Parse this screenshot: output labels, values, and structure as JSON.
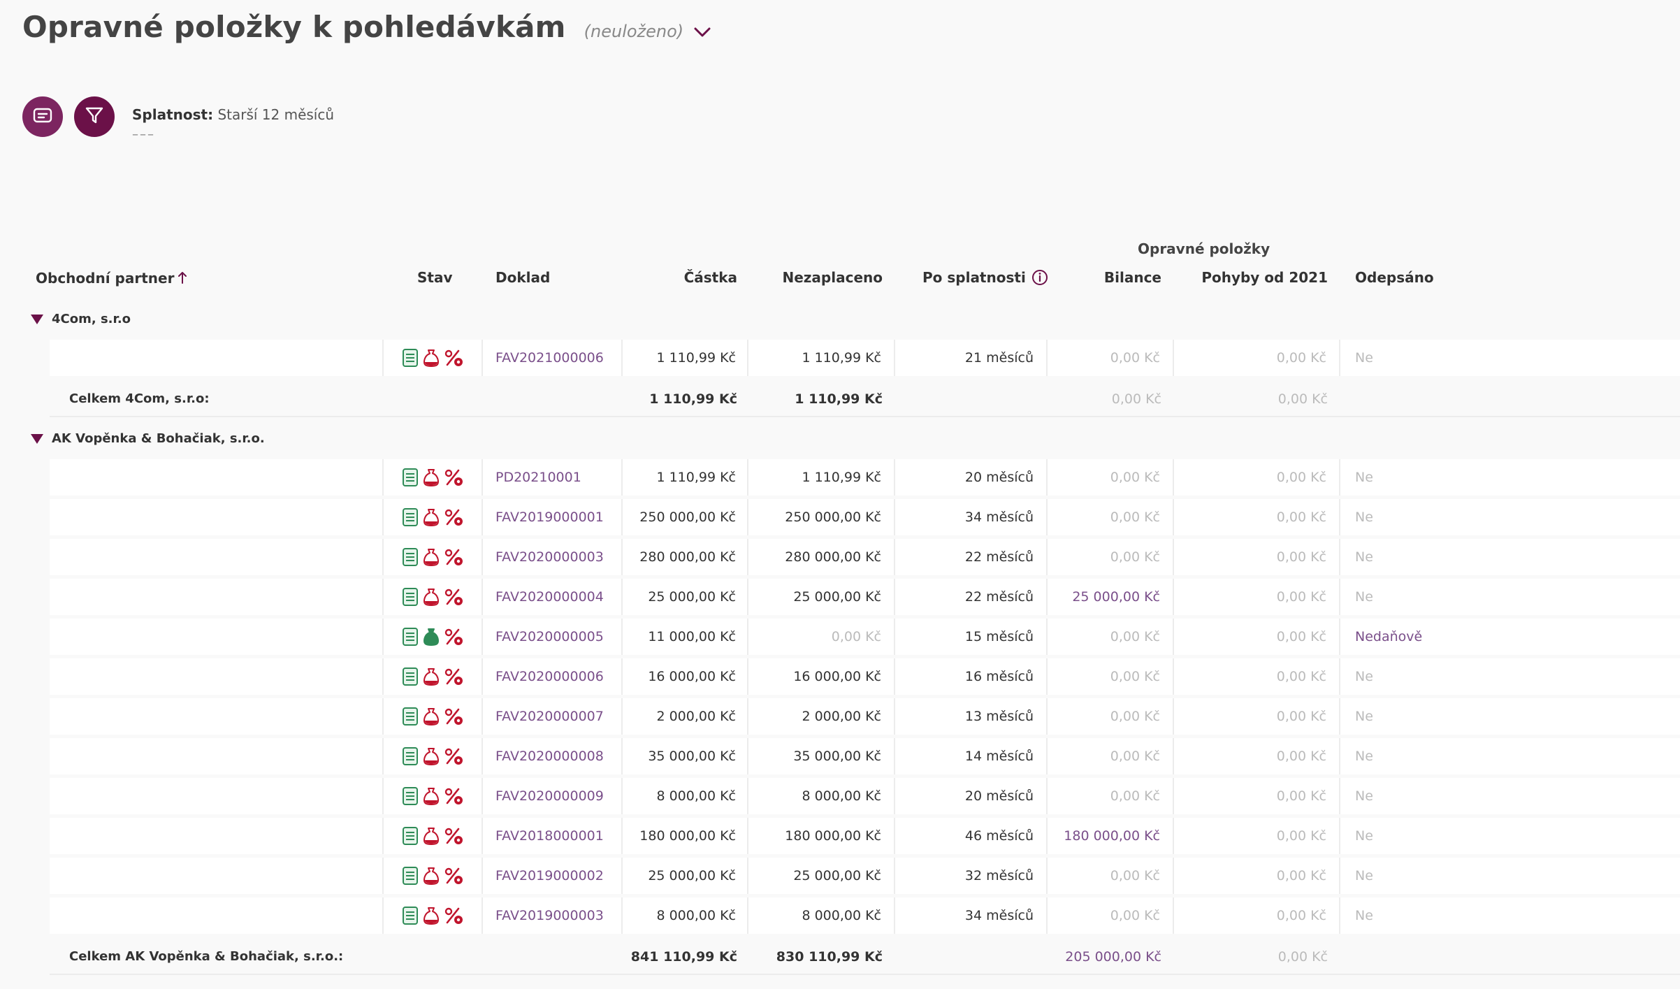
{
  "header": {
    "title": "Opravné položky k pohledávkám",
    "status": "(neuloženo)"
  },
  "filter": {
    "label": "Splatnost:",
    "value": "Starší 12 měsíců",
    "dashes": "–––"
  },
  "table": {
    "group_header": "Opravné položky",
    "columns": {
      "partner": "Obchodní partner",
      "stav": "Stav",
      "doklad": "Doklad",
      "castka": "Částka",
      "nezaplaceno": "Nezaplaceno",
      "po_splatnosti": "Po splatnosti",
      "bilance": "Bilance",
      "pohyby": "Pohyby od 2021",
      "odepsano": "Odepsáno"
    },
    "groups": [
      {
        "partner": "4Com, s.r.o",
        "rows": [
          {
            "doklad": "FAV2021000006",
            "castka": "1 110,99 Kč",
            "nezaplaceno": "1 110,99 Kč",
            "po_splatnosti": "21 měsíců",
            "bilance": "0,00 Kč",
            "pohyby": "0,00 Kč",
            "odepsano": "Ne"
          }
        ],
        "total": {
          "label": "Celkem 4Com, s.r.o:",
          "castka": "1 110,99 Kč",
          "nezaplaceno": "1 110,99 Kč",
          "bilance": "0,00 Kč",
          "pohyby": "0,00 Kč"
        }
      },
      {
        "partner": "AK Vopěnka & Bohačiak, s.r.o.",
        "rows": [
          {
            "doklad": "PD20210001",
            "castka": "1 110,99 Kč",
            "nezaplaceno": "1 110,99 Kč",
            "po_splatnosti": "20 měsíců",
            "bilance": "0,00 Kč",
            "pohyby": "0,00 Kč",
            "odepsano": "Ne"
          },
          {
            "doklad": "FAV2019000001",
            "castka": "250 000,00 Kč",
            "nezaplaceno": "250 000,00 Kč",
            "po_splatnosti": "34 měsíců",
            "bilance": "0,00 Kč",
            "pohyby": "0,00 Kč",
            "odepsano": "Ne"
          },
          {
            "doklad": "FAV2020000003",
            "castka": "280 000,00 Kč",
            "nezaplaceno": "280 000,00 Kč",
            "po_splatnosti": "22 měsíců",
            "bilance": "0,00 Kč",
            "pohyby": "0,00 Kč",
            "odepsano": "Ne"
          },
          {
            "doklad": "FAV2020000004",
            "castka": "25 000,00 Kč",
            "nezaplaceno": "25 000,00 Kč",
            "po_splatnosti": "22 měsíců",
            "bilance": "25 000,00 Kč",
            "pohyby": "0,00 Kč",
            "odepsano": "Ne"
          },
          {
            "doklad": "FAV2020000005",
            "castka": "11 000,00 Kč",
            "nezaplaceno": "0,00 Kč",
            "po_splatnosti": "15 měsíců",
            "bilance": "0,00 Kč",
            "pohyby": "0,00 Kč",
            "odepsano": "Nedaňově"
          },
          {
            "doklad": "FAV2020000006",
            "castka": "16 000,00 Kč",
            "nezaplaceno": "16 000,00 Kč",
            "po_splatnosti": "16 měsíců",
            "bilance": "0,00 Kč",
            "pohyby": "0,00 Kč",
            "odepsano": "Ne"
          },
          {
            "doklad": "FAV2020000007",
            "castka": "2 000,00 Kč",
            "nezaplaceno": "2 000,00 Kč",
            "po_splatnosti": "13 měsíců",
            "bilance": "0,00 Kč",
            "pohyby": "0,00 Kč",
            "odepsano": "Ne"
          },
          {
            "doklad": "FAV2020000008",
            "castka": "35 000,00 Kč",
            "nezaplaceno": "35 000,00 Kč",
            "po_splatnosti": "14 měsíců",
            "bilance": "0,00 Kč",
            "pohyby": "0,00 Kč",
            "odepsano": "Ne"
          },
          {
            "doklad": "FAV2020000009",
            "castka": "8 000,00 Kč",
            "nezaplaceno": "8 000,00 Kč",
            "po_splatnosti": "20 měsíců",
            "bilance": "0,00 Kč",
            "pohyby": "0,00 Kč",
            "odepsano": "Ne"
          },
          {
            "doklad": "FAV2018000001",
            "castka": "180 000,00 Kč",
            "nezaplaceno": "180 000,00 Kč",
            "po_splatnosti": "46 měsíců",
            "bilance": "180 000,00 Kč",
            "pohyby": "0,00 Kč",
            "odepsano": "Ne"
          },
          {
            "doklad": "FAV2019000002",
            "castka": "25 000,00 Kč",
            "nezaplaceno": "25 000,00 Kč",
            "po_splatnosti": "32 měsíců",
            "bilance": "0,00 Kč",
            "pohyby": "0,00 Kč",
            "odepsano": "Ne"
          },
          {
            "doklad": "FAV2019000003",
            "castka": "8 000,00 Kč",
            "nezaplaceno": "8 000,00 Kč",
            "po_splatnosti": "34 měsíců",
            "bilance": "0,00 Kč",
            "pohyby": "0,00 Kč",
            "odepsano": "Ne"
          }
        ],
        "total": {
          "label": "Celkem AK Vopěnka & Bohačiak, s.r.o.:",
          "castka": "841 110,99 Kč",
          "nezaplaceno": "830 110,99 Kč",
          "bilance": "205 000,00 Kč",
          "pohyby": "0,00 Kč"
        }
      }
    ]
  },
  "colors": {
    "brand": "#6b1148",
    "accent": "#7c2560",
    "link": "#7a4f8a",
    "muted": "#bbbbbb",
    "green": "#2e8b57",
    "red": "#c0142c"
  },
  "icons": [
    "cards-icon",
    "filter-icon",
    "sort-up-icon",
    "info-icon",
    "chevron-down-icon",
    "document-status-icon",
    "bag-status-icon",
    "percent-status-icon"
  ]
}
